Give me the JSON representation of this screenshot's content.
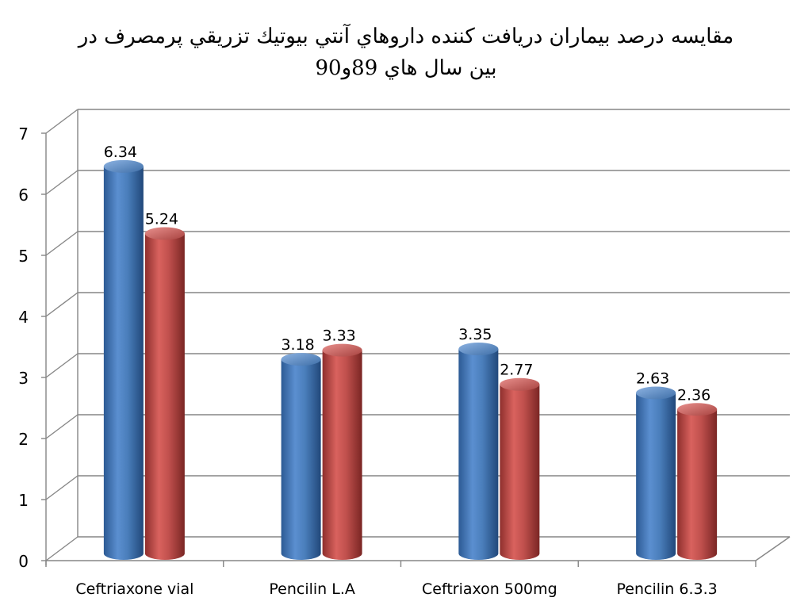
{
  "title_lines": [
    "مقايسه درصد بيماران دريافت كننده داروهاي آنتي بيوتيك تزريقي پرمصرف در",
    "بين سال هاي 89و90"
  ],
  "chart_data": {
    "type": "bar",
    "style": "3d-cylinder",
    "categories": [
      "Ceftriaxone vial",
      "Pencilin L.A",
      "Ceftriaxon 500mg",
      "Pencilin 6.3.3"
    ],
    "series": [
      {
        "values": [
          6.34,
          3.18,
          3.35,
          2.63
        ],
        "color": "#4a7ebb"
      },
      {
        "values": [
          5.24,
          3.33,
          2.77,
          2.36
        ],
        "color": "#c0504d"
      }
    ],
    "data_labels": [
      [
        "6.34",
        "3.18",
        "3.35",
        "2.63"
      ],
      [
        "5.24",
        "3.33",
        "2.77",
        "2.36"
      ]
    ],
    "y_ticks": [
      "0",
      "1",
      "2",
      "3",
      "4",
      "5",
      "6",
      "7"
    ],
    "ylim": [
      0,
      7
    ],
    "grid": true,
    "legend": "none"
  }
}
